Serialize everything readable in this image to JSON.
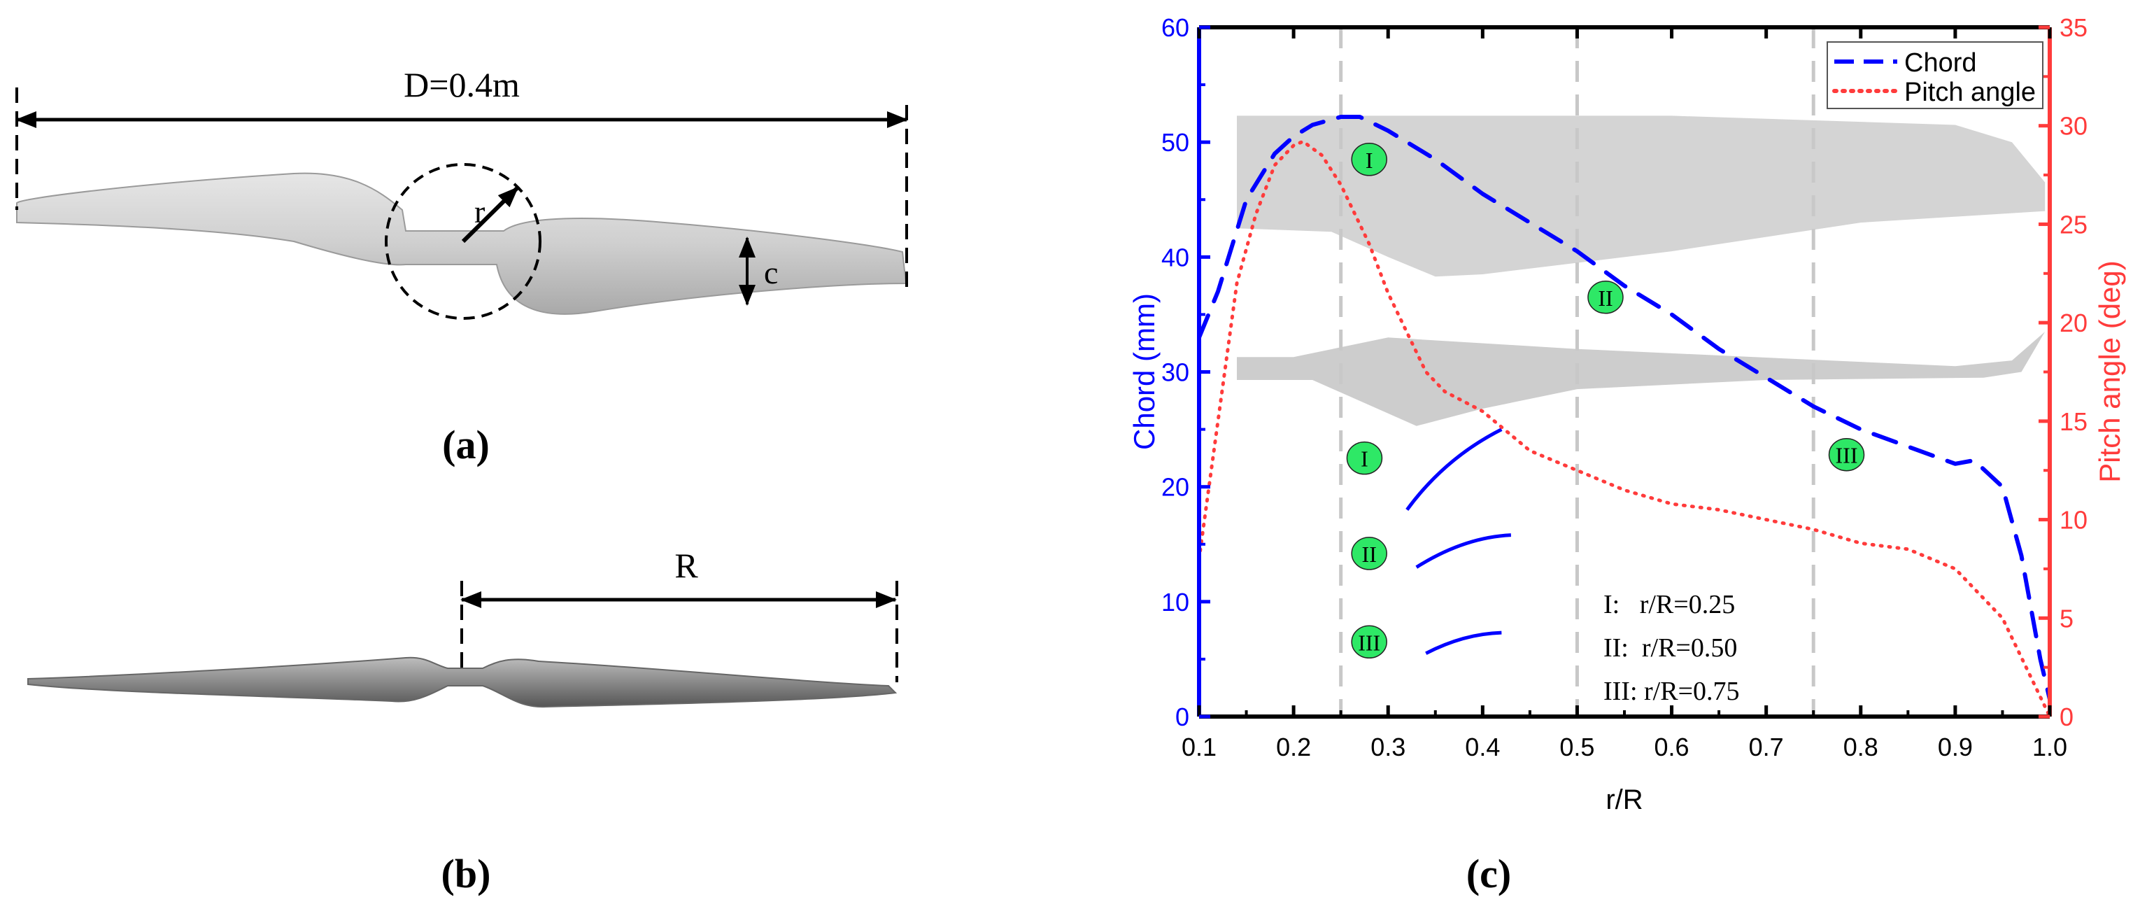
{
  "panels": {
    "a": {
      "label": "(a)",
      "diameter": "D=0.4m",
      "radius_symbol": "r",
      "chord_symbol": "c"
    },
    "b": {
      "label": "(b)",
      "radius": "R"
    },
    "c": {
      "label": "(c)"
    }
  },
  "colors": {
    "chord": "#0000ff",
    "pitch": "#ff3b3b",
    "marker": "#2ee866",
    "guide": "#c8c8c8"
  },
  "chart_data": {
    "type": "line",
    "xlabel": "r/R",
    "ylabel": "Chord (mm)",
    "y2label": "Pitch angle (deg)",
    "xlim": [
      0.1,
      1.0
    ],
    "ylim": [
      0,
      60
    ],
    "y2lim": [
      0,
      35
    ],
    "xticks": [
      "0.1",
      "0.2",
      "0.3",
      "0.4",
      "0.5",
      "0.6",
      "0.7",
      "0.8",
      "0.9",
      "1.0"
    ],
    "yticks": [
      "0",
      "10",
      "20",
      "30",
      "40",
      "50",
      "60"
    ],
    "y2ticks": [
      "0",
      "5",
      "10",
      "15",
      "20",
      "25",
      "30",
      "35"
    ],
    "grid": false,
    "legend": "top-right",
    "reference_lines_x": [
      0.25,
      0.5,
      0.75
    ],
    "series": [
      {
        "name": "Chord",
        "axis": "left",
        "style": "dashed",
        "x": [
          0.1,
          0.12,
          0.15,
          0.18,
          0.2,
          0.22,
          0.25,
          0.27,
          0.3,
          0.35,
          0.4,
          0.45,
          0.5,
          0.55,
          0.6,
          0.65,
          0.7,
          0.75,
          0.8,
          0.85,
          0.9,
          0.92,
          0.95,
          0.97,
          0.99,
          1.0
        ],
        "y": [
          33,
          37,
          45,
          49,
          50.5,
          51.5,
          52.2,
          52.2,
          51,
          48.5,
          45.5,
          43,
          40.5,
          37.5,
          35,
          32,
          29.5,
          27,
          25,
          23.5,
          22,
          22.3,
          20,
          14,
          5,
          1.5
        ]
      },
      {
        "name": "Pitch angle",
        "axis": "right",
        "style": "dotted",
        "x": [
          0.1,
          0.12,
          0.14,
          0.16,
          0.18,
          0.2,
          0.21,
          0.23,
          0.25,
          0.28,
          0.3,
          0.32,
          0.34,
          0.36,
          0.4,
          0.45,
          0.5,
          0.55,
          0.6,
          0.65,
          0.7,
          0.75,
          0.8,
          0.85,
          0.9,
          0.95,
          0.98,
          1.0
        ],
        "y": [
          8,
          15,
          22,
          25.5,
          28,
          29,
          29.2,
          28.5,
          27,
          24,
          21.5,
          19.5,
          17.5,
          16.5,
          15.5,
          13.5,
          12.5,
          11.5,
          10.8,
          10.5,
          10,
          9.5,
          8.8,
          8.5,
          7.5,
          5,
          2,
          0
        ]
      }
    ],
    "markers": [
      {
        "label": "I",
        "x": 0.28,
        "y": 48.5
      },
      {
        "label": "II",
        "x": 0.53,
        "y": 36.5
      },
      {
        "label": "III",
        "x": 0.785,
        "y": 22.8
      },
      {
        "label": "I",
        "x": 0.275,
        "y": 22.5
      },
      {
        "label": "II",
        "x": 0.28,
        "y": 14.2
      },
      {
        "label": "III",
        "x": 0.28,
        "y": 6.5
      }
    ],
    "annotations": [
      "I:   r/R=0.25",
      "II:  r/R=0.50",
      "III: r/R=0.75"
    ]
  }
}
